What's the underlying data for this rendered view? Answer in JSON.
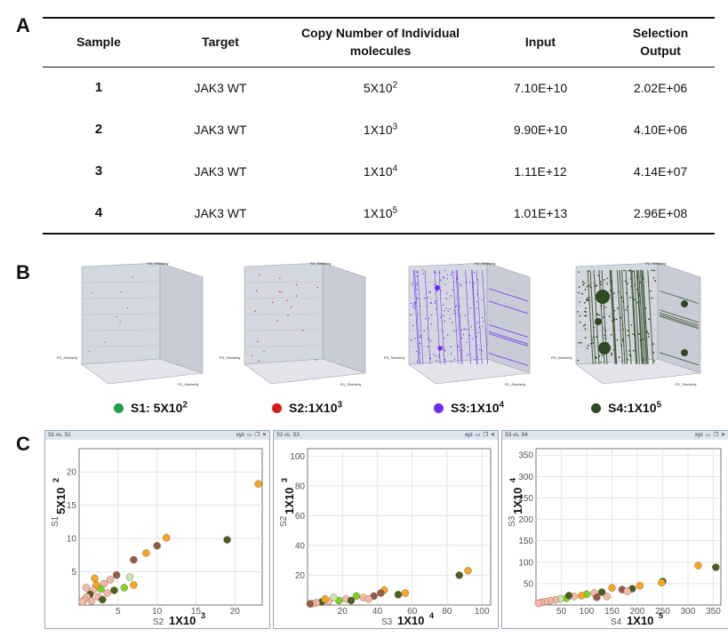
{
  "panel_labels": {
    "a": "A",
    "b": "B",
    "c": "C"
  },
  "table": {
    "headers": {
      "sample": "Sample",
      "target": "Target",
      "copy_line1": "Copy Number of Individual",
      "copy_line2": "molecules",
      "input": "Input",
      "selection_line1": "Selection",
      "selection_line2": "Output"
    },
    "rows": [
      {
        "sample": "1",
        "target": "JAK3 WT",
        "copy_base": "5X10",
        "copy_exp": "2",
        "input": "7.10E+10",
        "output": "2.02E+06"
      },
      {
        "sample": "2",
        "target": "JAK3 WT",
        "copy_base": "1X10",
        "copy_exp": "3",
        "input": "9.90E+10",
        "output": "4.10E+06"
      },
      {
        "sample": "3",
        "target": "JAK3 WT",
        "copy_base": "1X10",
        "copy_exp": "4",
        "input": "1.11E+12",
        "output": "4.14E+07"
      },
      {
        "sample": "4",
        "target": "JAK3 WT",
        "copy_base": "1X10",
        "copy_exp": "5",
        "input": "1.01E+13",
        "output": "2.96E+08"
      }
    ]
  },
  "panel_b": {
    "axis_labels": {
      "r1": "R1_Similarity",
      "r2": "R2_Similarity",
      "r3": "R3_Similarity"
    },
    "legend": [
      {
        "label_base": "S1: 5X10",
        "label_exp": "2",
        "color": "#1aa34a"
      },
      {
        "label_base": "S2:1X10",
        "label_exp": "3",
        "color": "#d8191a"
      },
      {
        "label_base": "S3:1X10",
        "label_exp": "4",
        "color": "#6a2cf0"
      },
      {
        "label_base": "S4:1X10",
        "label_exp": "5",
        "color": "#2e4a22"
      }
    ]
  },
  "panel_c": {
    "windows": [
      {
        "title": "S1 vs. S2",
        "xlabel_small": "S2",
        "xlabel_big_base": "1X10",
        "xlabel_big_exp": "3",
        "ylabel_small": "S1",
        "ylabel_big_base": "5X10",
        "ylabel_big_exp": "2",
        "xticks": [
          5,
          10,
          15,
          20
        ],
        "yticks": [
          5,
          10,
          15,
          20
        ],
        "xlim": [
          0,
          23.5
        ],
        "ylim": [
          0,
          23.5
        ]
      },
      {
        "title": "S2 vs. S3",
        "xlabel_small": "S3",
        "xlabel_big_base": "1X10",
        "xlabel_big_exp": "4",
        "ylabel_small": "S2",
        "ylabel_big_base": "1X10",
        "ylabel_big_exp": "3",
        "xticks": [
          20,
          40,
          60,
          80,
          100
        ],
        "yticks": [
          20,
          40,
          60,
          80,
          100
        ],
        "xlim": [
          0,
          105
        ],
        "ylim": [
          0,
          105
        ]
      },
      {
        "title": "S3 vs. S4",
        "xlabel_small": "S4",
        "xlabel_big_base": "1X10",
        "xlabel_big_exp": "5",
        "ylabel_small": "S3",
        "ylabel_big_base": "1X10",
        "ylabel_big_exp": "4",
        "xticks": [
          50,
          100,
          150,
          200,
          250,
          300,
          350
        ],
        "yticks": [
          50,
          100,
          150,
          200,
          250,
          300,
          350
        ],
        "xlim": [
          0,
          365
        ],
        "ylim": [
          0,
          365
        ]
      }
    ],
    "toolbar_label": "xyz",
    "point_colors": [
      "#f5a623",
      "#4e5e1e",
      "#9a5a4a",
      "#7ed321",
      "#f4b8a8",
      "#c8e6b0"
    ]
  },
  "chart_data": [
    {
      "type": "scatter",
      "title": "S1 vs. S2",
      "xlabel": "S2 1X10^3",
      "ylabel": "S1 5X10^2",
      "xlim": [
        0,
        23.5
      ],
      "ylim": [
        0,
        23.5
      ],
      "points": [
        {
          "x": 23.0,
          "y": 18.2,
          "c": "#f5a623"
        },
        {
          "x": 19.0,
          "y": 9.8,
          "c": "#4e5e1e"
        },
        {
          "x": 11.2,
          "y": 10.1,
          "c": "#f5a623"
        },
        {
          "x": 10.0,
          "y": 8.9,
          "c": "#9a5a4a"
        },
        {
          "x": 8.6,
          "y": 7.8,
          "c": "#f5a623"
        },
        {
          "x": 7.0,
          "y": 6.8,
          "c": "#9a5a4a"
        },
        {
          "x": 6.5,
          "y": 4.2,
          "c": "#c8e6b0"
        },
        {
          "x": 7.0,
          "y": 3.0,
          "c": "#f5a623"
        },
        {
          "x": 5.8,
          "y": 2.6,
          "c": "#7ed321"
        },
        {
          "x": 4.8,
          "y": 4.5,
          "c": "#9a5a4a"
        },
        {
          "x": 4.0,
          "y": 3.8,
          "c": "#f4b8a8"
        },
        {
          "x": 3.2,
          "y": 3.2,
          "c": "#f4b8a8"
        },
        {
          "x": 2.8,
          "y": 2.4,
          "c": "#7ed321"
        },
        {
          "x": 2.2,
          "y": 3.0,
          "c": "#f5a623"
        },
        {
          "x": 1.8,
          "y": 2.2,
          "c": "#f4b8a8"
        },
        {
          "x": 1.4,
          "y": 1.6,
          "c": "#4e5e1e"
        },
        {
          "x": 1.0,
          "y": 1.2,
          "c": "#f4b8a8"
        },
        {
          "x": 0.7,
          "y": 0.8,
          "c": "#f4b8a8"
        },
        {
          "x": 0.4,
          "y": 0.5,
          "c": "#f4b8a8"
        },
        {
          "x": 2.5,
          "y": 1.2,
          "c": "#f4b8a8"
        },
        {
          "x": 3.6,
          "y": 1.8,
          "c": "#f4b8a8"
        },
        {
          "x": 1.6,
          "y": 0.6,
          "c": "#f4b8a8"
        },
        {
          "x": 0.9,
          "y": 2.6,
          "c": "#f4b8a8"
        },
        {
          "x": 2.0,
          "y": 4.0,
          "c": "#f5a623"
        },
        {
          "x": 4.5,
          "y": 2.2,
          "c": "#4e5e1e"
        },
        {
          "x": 3.0,
          "y": 0.8,
          "c": "#4e5e1e"
        }
      ]
    },
    {
      "type": "scatter",
      "title": "S2 vs. S3",
      "xlabel": "S3 1X10^4",
      "ylabel": "S2 1X10^3",
      "xlim": [
        0,
        105
      ],
      "ylim": [
        0,
        105
      ],
      "points": [
        {
          "x": 92,
          "y": 23,
          "c": "#f5a623"
        },
        {
          "x": 87,
          "y": 20,
          "c": "#4e5e1e"
        },
        {
          "x": 56,
          "y": 8,
          "c": "#f5a623"
        },
        {
          "x": 52,
          "y": 7,
          "c": "#4e5e1e"
        },
        {
          "x": 44,
          "y": 10,
          "c": "#f5a623"
        },
        {
          "x": 42,
          "y": 8,
          "c": "#9a5a4a"
        },
        {
          "x": 38,
          "y": 6,
          "c": "#9a5a4a"
        },
        {
          "x": 32,
          "y": 5,
          "c": "#f4b8a8"
        },
        {
          "x": 28,
          "y": 6,
          "c": "#7ed321"
        },
        {
          "x": 22,
          "y": 4,
          "c": "#f4b8a8"
        },
        {
          "x": 18,
          "y": 3,
          "c": "#7ed321"
        },
        {
          "x": 15,
          "y": 5,
          "c": "#c8e6b0"
        },
        {
          "x": 12,
          "y": 2.5,
          "c": "#f4b8a8"
        },
        {
          "x": 8,
          "y": 2,
          "c": "#4e5e1e"
        },
        {
          "x": 5,
          "y": 1.5,
          "c": "#f4b8a8"
        },
        {
          "x": 3,
          "y": 1,
          "c": "#f4b8a8"
        },
        {
          "x": 1.5,
          "y": 0.8,
          "c": "#9a5a4a"
        },
        {
          "x": 10,
          "y": 4,
          "c": "#f5a623"
        },
        {
          "x": 25,
          "y": 3,
          "c": "#4e5e1e"
        },
        {
          "x": 35,
          "y": 4,
          "c": "#f4b8a8"
        }
      ]
    },
    {
      "type": "scatter",
      "title": "S3 vs. S4",
      "xlabel": "S4 1X10^5",
      "ylabel": "S3 1X10^4",
      "xlim": [
        0,
        365
      ],
      "ylim": [
        0,
        365
      ],
      "points": [
        {
          "x": 355,
          "y": 88,
          "c": "#4e5e1e"
        },
        {
          "x": 320,
          "y": 92,
          "c": "#f5a623"
        },
        {
          "x": 250,
          "y": 55,
          "c": "#4e5e1e"
        },
        {
          "x": 248,
          "y": 52,
          "c": "#f5a623"
        },
        {
          "x": 205,
          "y": 45,
          "c": "#f5a623"
        },
        {
          "x": 190,
          "y": 38,
          "c": "#4e5e1e"
        },
        {
          "x": 170,
          "y": 36,
          "c": "#9a5a4a"
        },
        {
          "x": 150,
          "y": 40,
          "c": "#f5a623"
        },
        {
          "x": 130,
          "y": 30,
          "c": "#4e5e1e"
        },
        {
          "x": 115,
          "y": 28,
          "c": "#f4b8a8"
        },
        {
          "x": 100,
          "y": 25,
          "c": "#7ed321"
        },
        {
          "x": 90,
          "y": 22,
          "c": "#f5a623"
        },
        {
          "x": 75,
          "y": 20,
          "c": "#f4b8a8"
        },
        {
          "x": 60,
          "y": 16,
          "c": "#7ed321"
        },
        {
          "x": 48,
          "y": 14,
          "c": "#c8e6b0"
        },
        {
          "x": 38,
          "y": 12,
          "c": "#f4b8a8"
        },
        {
          "x": 28,
          "y": 10,
          "c": "#f4b8a8"
        },
        {
          "x": 18,
          "y": 8,
          "c": "#f4b8a8"
        },
        {
          "x": 10,
          "y": 6,
          "c": "#f4b8a8"
        },
        {
          "x": 5,
          "y": 4,
          "c": "#f4b8a8"
        },
        {
          "x": 140,
          "y": 20,
          "c": "#f4b8a8"
        },
        {
          "x": 180,
          "y": 32,
          "c": "#f4b8a8"
        },
        {
          "x": 120,
          "y": 18,
          "c": "#9a5a4a"
        },
        {
          "x": 65,
          "y": 22,
          "c": "#4e5e1e"
        }
      ]
    }
  ]
}
